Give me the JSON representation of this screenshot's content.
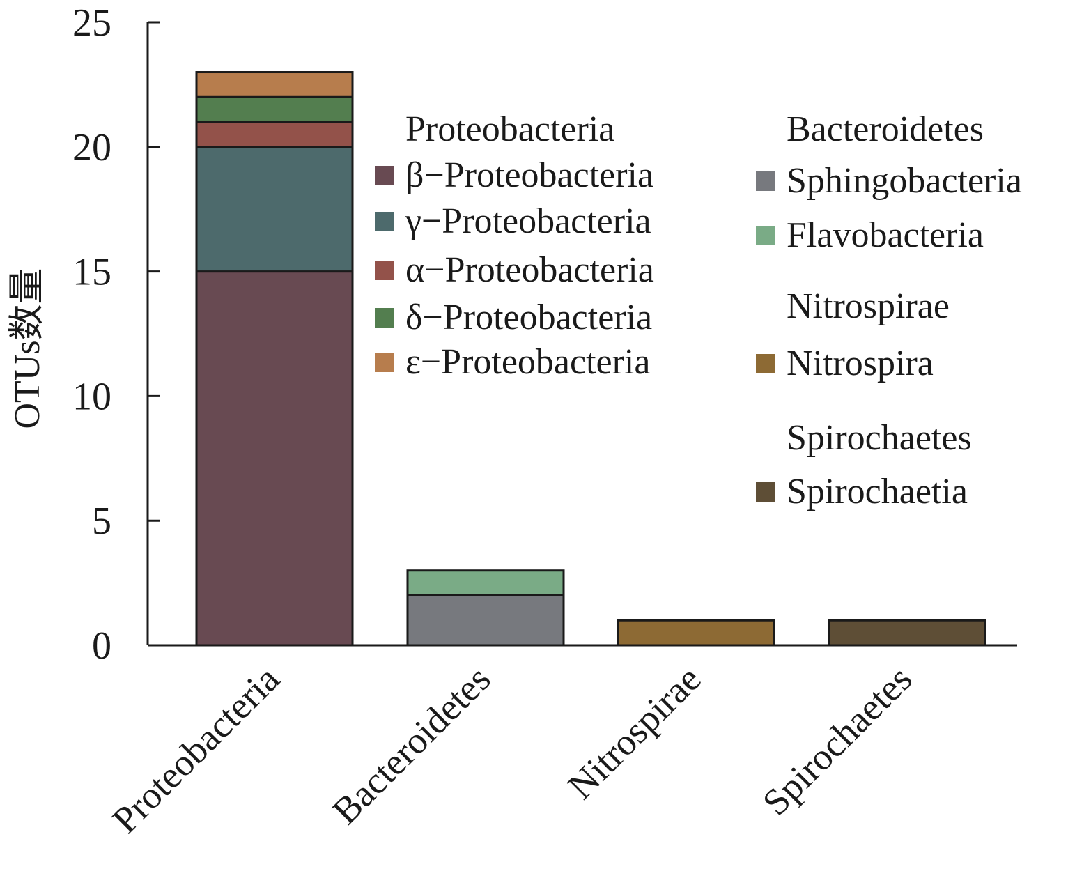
{
  "chart_data": {
    "type": "bar",
    "stacked": true,
    "ylabel": "OTUs数量",
    "ylim": [
      0,
      25
    ],
    "yticks": [
      0,
      5,
      10,
      15,
      20,
      25
    ],
    "grid": false,
    "categories": [
      "Proteobacteria",
      "Bacteroidetes",
      "Nitrospirae",
      "Spirochaetes"
    ],
    "series": [
      {
        "name": "β−Proteobacteria",
        "color": "#684a52",
        "values": [
          15,
          0,
          0,
          0
        ]
      },
      {
        "name": "γ−Proteobacteria",
        "color": "#4d6a6c",
        "values": [
          5,
          0,
          0,
          0
        ]
      },
      {
        "name": "α−Proteobacteria",
        "color": "#93524a",
        "values": [
          1,
          0,
          0,
          0
        ]
      },
      {
        "name": "δ−Proteobacteria",
        "color": "#537e4f",
        "values": [
          1,
          0,
          0,
          0
        ]
      },
      {
        "name": "ε−Proteobacteria",
        "color": "#b77d4d",
        "values": [
          1,
          0,
          0,
          0
        ]
      },
      {
        "name": "Sphingobacteria",
        "color": "#77797e",
        "values": [
          0,
          2,
          0,
          0
        ]
      },
      {
        "name": "Flavobacteria",
        "color": "#7aab86",
        "values": [
          0,
          1,
          0,
          0
        ]
      },
      {
        "name": "Nitrospira",
        "color": "#8d6a34",
        "values": [
          0,
          0,
          1,
          0
        ]
      },
      {
        "name": "Spirochaetia",
        "color": "#5e4e36",
        "values": [
          0,
          0,
          0,
          1
        ]
      }
    ],
    "legend": {
      "placement": "top-right",
      "groups": [
        {
          "title": "Proteobacteria",
          "items": [
            "β−Proteobacteria",
            "γ−Proteobacteria",
            "α−Proteobacteria",
            "δ−Proteobacteria",
            "ε−Proteobacteria"
          ]
        },
        {
          "title": "Bacteroidetes",
          "items": [
            "Sphingobacteria",
            "Flavobacteria"
          ]
        },
        {
          "title": "Nitrospirae",
          "items": [
            "Nitrospira"
          ]
        },
        {
          "title": "Spirochaetes",
          "items": [
            "Spirochaetia"
          ]
        }
      ]
    }
  }
}
